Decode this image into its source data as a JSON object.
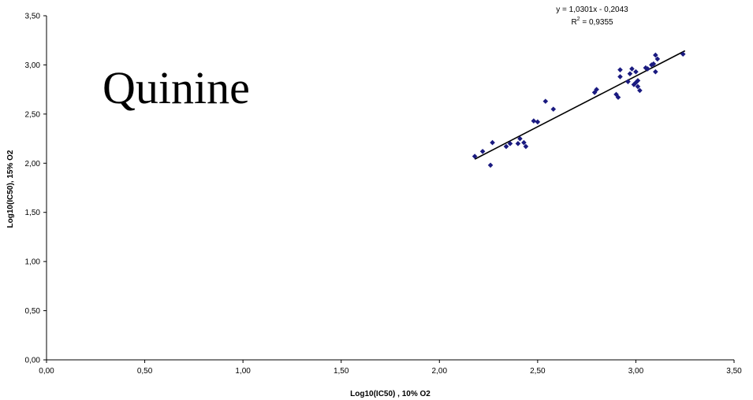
{
  "chart_data": {
    "type": "scatter",
    "title": "Quinine",
    "xlabel": "Log10(IC50) , 10% O2",
    "ylabel": "Log10(IC50), 15% O2",
    "xlim": [
      0,
      3.5
    ],
    "ylim": [
      0,
      3.5
    ],
    "x_ticks": [
      "0,00",
      "0,50",
      "1,00",
      "1,50",
      "2,00",
      "2,50",
      "3,00",
      "3,50"
    ],
    "y_ticks": [
      "0,00",
      "0,50",
      "1,00",
      "1,50",
      "2,00",
      "2,50",
      "3,00",
      "3,50"
    ],
    "grid": false,
    "legend": "none",
    "marker_color": "#1a1a80",
    "trendline": {
      "equation": "y = 1,0301x - 0,2043",
      "r2_prefix": "R",
      "r2_sup": "2",
      "r2_value": " = 0,9355",
      "x_range": [
        2.18,
        3.25
      ],
      "slope": 1.0301,
      "intercept": -0.2043,
      "color": "#000000"
    },
    "points": [
      [
        2.18,
        2.07
      ],
      [
        2.22,
        2.12
      ],
      [
        2.26,
        1.98
      ],
      [
        2.27,
        2.21
      ],
      [
        2.34,
        2.17
      ],
      [
        2.36,
        2.2
      ],
      [
        2.4,
        2.2
      ],
      [
        2.41,
        2.25
      ],
      [
        2.43,
        2.21
      ],
      [
        2.44,
        2.17
      ],
      [
        2.48,
        2.43
      ],
      [
        2.5,
        2.42
      ],
      [
        2.54,
        2.63
      ],
      [
        2.58,
        2.55
      ],
      [
        2.79,
        2.72
      ],
      [
        2.8,
        2.75
      ],
      [
        2.9,
        2.7
      ],
      [
        2.91,
        2.67
      ],
      [
        2.92,
        2.88
      ],
      [
        2.92,
        2.95
      ],
      [
        2.96,
        2.83
      ],
      [
        2.97,
        2.91
      ],
      [
        2.98,
        2.96
      ],
      [
        2.99,
        2.8
      ],
      [
        3.0,
        2.82
      ],
      [
        3.0,
        2.93
      ],
      [
        3.01,
        2.84
      ],
      [
        3.01,
        2.78
      ],
      [
        3.02,
        2.74
      ],
      [
        3.05,
        2.97
      ],
      [
        3.06,
        2.96
      ],
      [
        3.08,
        3.0
      ],
      [
        3.09,
        3.01
      ],
      [
        3.1,
        2.93
      ],
      [
        3.1,
        3.1
      ],
      [
        3.11,
        3.06
      ],
      [
        3.24,
        3.11
      ]
    ]
  }
}
